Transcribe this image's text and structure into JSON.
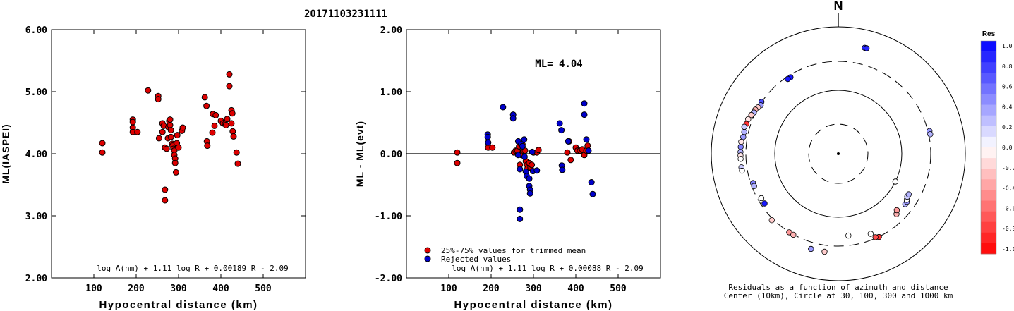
{
  "event_id": "20171103231111",
  "chart_data": [
    {
      "type": "scatter",
      "title": "",
      "xlabel": "Hypocentral distance (km)",
      "ylabel": "ML(IASPEI)",
      "xlim": [
        0,
        600
      ],
      "ylim": [
        2.0,
        6.0
      ],
      "xticks": [
        100,
        200,
        300,
        400,
        500
      ],
      "yticks": [
        2.0,
        3.0,
        4.0,
        5.0,
        6.0
      ],
      "ytick_labels": [
        "2.00",
        "3.00",
        "4.00",
        "5.00",
        "6.00"
      ],
      "formula": "log A(nm) + 1.11 log R + 0.00189 R - 2.09",
      "series": [
        {
          "color": "#dd0000",
          "points": [
            [
              120,
              4.17
            ],
            [
              120,
              4.02
            ],
            [
              192,
              4.55
            ],
            [
              192,
              4.51
            ],
            [
              192,
              4.42
            ],
            [
              192,
              4.35
            ],
            [
              203,
              4.35
            ],
            [
              228,
              5.02
            ],
            [
              252,
              4.93
            ],
            [
              252,
              4.88
            ],
            [
              254,
              4.25
            ],
            [
              262,
              4.35
            ],
            [
              262,
              4.49
            ],
            [
              265,
              4.45
            ],
            [
              268,
              3.42
            ],
            [
              268,
              3.25
            ],
            [
              268,
              4.1
            ],
            [
              272,
              4.08
            ],
            [
              275,
              4.25
            ],
            [
              276,
              4.43
            ],
            [
              278,
              4.53
            ],
            [
              280,
              4.55
            ],
            [
              280,
              4.46
            ],
            [
              282,
              4.38
            ],
            [
              282,
              4.27
            ],
            [
              285,
              4.16
            ],
            [
              286,
              4.13
            ],
            [
              288,
              4.08
            ],
            [
              290,
              4.05
            ],
            [
              290,
              3.98
            ],
            [
              292,
              3.92
            ],
            [
              292,
              3.85
            ],
            [
              294,
              3.7
            ],
            [
              296,
              4.17
            ],
            [
              297,
              4.3
            ],
            [
              300,
              4.1
            ],
            [
              308,
              4.37
            ],
            [
              310,
              4.42
            ],
            [
              362,
              4.91
            ],
            [
              366,
              4.77
            ],
            [
              367,
              4.2
            ],
            [
              368,
              4.13
            ],
            [
              380,
              4.34
            ],
            [
              381,
              4.64
            ],
            [
              385,
              4.45
            ],
            [
              388,
              4.62
            ],
            [
              400,
              4.53
            ],
            [
              405,
              4.49
            ],
            [
              410,
              4.48
            ],
            [
              412,
              4.46
            ],
            [
              415,
              4.56
            ],
            [
              420,
              5.28
            ],
            [
              420,
              5.09
            ],
            [
              425,
              4.49
            ],
            [
              425,
              4.7
            ],
            [
              427,
              4.65
            ],
            [
              428,
              4.36
            ],
            [
              430,
              4.28
            ],
            [
              437,
              4.02
            ],
            [
              440,
              3.84
            ]
          ]
        }
      ]
    },
    {
      "type": "scatter",
      "title": "",
      "xlabel": "Hypocentral distance (km)",
      "ylabel": "ML - ML(evt)",
      "xlim": [
        0,
        600
      ],
      "ylim": [
        -2.0,
        2.0
      ],
      "xticks": [
        100,
        200,
        300,
        400,
        500
      ],
      "yticks": [
        -2.0,
        -1.0,
        0.0,
        1.0,
        2.0
      ],
      "ytick_labels": [
        "-2.00",
        "-1.00",
        "0.00",
        "1.00",
        "2.00"
      ],
      "annotation": "ML= 4.04",
      "formula": "log A(nm) + 1.11 log R + 0.00088 R - 2.09",
      "legend": [
        "25%-75% values for trimmed mean",
        "Rejected values"
      ],
      "series": [
        {
          "name": "25%-75% values for trimmed mean",
          "color": "#dd0000",
          "points": [
            [
              120,
              0.02
            ],
            [
              120,
              -0.15
            ],
            [
              193,
              0.1
            ],
            [
              203,
              0.1
            ],
            [
              254,
              0.02
            ],
            [
              258,
              0.05
            ],
            [
              262,
              0.05
            ],
            [
              266,
              0.12
            ],
            [
              268,
              -0.18
            ],
            [
              272,
              -0.02
            ],
            [
              274,
              0.15
            ],
            [
              276,
              0.05
            ],
            [
              280,
              0.05
            ],
            [
              282,
              -0.12
            ],
            [
              285,
              -0.18
            ],
            [
              286,
              -0.24
            ],
            [
              290,
              -0.15
            ],
            [
              293,
              -0.22
            ],
            [
              296,
              -0.18
            ],
            [
              300,
              0.02
            ],
            [
              308,
              0.02
            ],
            [
              312,
              0.06
            ],
            [
              380,
              0.02
            ],
            [
              384,
              0.2
            ],
            [
              388,
              -0.1
            ],
            [
              400,
              0.1
            ],
            [
              404,
              0.05
            ],
            [
              410,
              0.05
            ],
            [
              415,
              0.07
            ],
            [
              420,
              -0.02
            ],
            [
              425,
              0.05
            ],
            [
              428,
              0.13
            ]
          ]
        },
        {
          "name": "Rejected values",
          "color": "#0000cc",
          "points": [
            [
              192,
              0.31
            ],
            [
              192,
              0.27
            ],
            [
              193,
              0.18
            ],
            [
              228,
              0.75
            ],
            [
              252,
              0.63
            ],
            [
              252,
              0.57
            ],
            [
              264,
              -0.02
            ],
            [
              264,
              0.2
            ],
            [
              268,
              -0.25
            ],
            [
              268,
              -0.9
            ],
            [
              268,
              -1.05
            ],
            [
              271,
              0.15
            ],
            [
              274,
              0.12
            ],
            [
              278,
              0.23
            ],
            [
              279,
              -0.05
            ],
            [
              282,
              -0.29
            ],
            [
              284,
              -0.36
            ],
            [
              290,
              -0.4
            ],
            [
              290,
              -0.52
            ],
            [
              292,
              -0.58
            ],
            [
              292,
              -0.64
            ],
            [
              297,
              0.03
            ],
            [
              299,
              -0.28
            ],
            [
              308,
              -0.27
            ],
            [
              362,
              0.49
            ],
            [
              366,
              0.38
            ],
            [
              367,
              -0.19
            ],
            [
              368,
              -0.26
            ],
            [
              382,
              0.2
            ],
            [
              420,
              0.81
            ],
            [
              420,
              0.63
            ],
            [
              425,
              0.23
            ],
            [
              430,
              0.05
            ],
            [
              437,
              -0.46
            ],
            [
              440,
              -0.65
            ]
          ]
        }
      ]
    }
  ],
  "polar": {
    "north_label": "N",
    "caption_line1": "Residuals as a function of azimuth and distance",
    "caption_line2": "Center (10km), Circle at 30, 100, 300 and 1000 km",
    "points": [
      {
        "az": 14,
        "r": 0.86,
        "res": 0.85
      },
      {
        "az": 15,
        "r": 0.86,
        "res": 0.85
      },
      {
        "az": -32,
        "r": 0.71,
        "res": 0.9
      },
      {
        "az": -34,
        "r": 0.71,
        "res": 0.9
      },
      {
        "az": -56,
        "r": 0.73,
        "res": 0.7
      },
      {
        "az": -58,
        "r": 0.72,
        "res": 0.4
      },
      {
        "az": -60,
        "r": 0.73,
        "res": -0.2
      },
      {
        "az": -62,
        "r": 0.74,
        "res": -0.3
      },
      {
        "az": -64,
        "r": 0.74,
        "res": 0.3
      },
      {
        "az": -66,
        "r": 0.75,
        "res": -0.2
      },
      {
        "az": -69,
        "r": 0.76,
        "res": -0.1
      },
      {
        "az": -72,
        "r": 0.76,
        "res": -0.8
      },
      {
        "az": -74,
        "r": 0.77,
        "res": 0.2
      },
      {
        "az": -77,
        "r": 0.76,
        "res": 0.3
      },
      {
        "az": -80,
        "r": 0.76,
        "res": 0.4
      },
      {
        "az": -83,
        "r": 0.77,
        "res": -0.1
      },
      {
        "az": -86,
        "r": 0.77,
        "res": 0.5
      },
      {
        "az": -89,
        "r": 0.77,
        "res": 0.3
      },
      {
        "az": -91,
        "r": 0.77,
        "res": -0.1
      },
      {
        "az": -93,
        "r": 0.77,
        "res": 0.0
      },
      {
        "az": -98,
        "r": 0.77,
        "res": 0.2
      },
      {
        "az": -100,
        "r": 0.77,
        "res": 0.0
      },
      {
        "az": -109,
        "r": 0.71,
        "res": 0.5
      },
      {
        "az": -111,
        "r": 0.71,
        "res": 0.3
      },
      {
        "az": -120,
        "r": 0.7,
        "res": 0.0
      },
      {
        "az": -124,
        "r": 0.7,
        "res": 0.9
      },
      {
        "az": -135,
        "r": 0.74,
        "res": -0.2
      },
      {
        "az": -148,
        "r": 0.73,
        "res": -0.4
      },
      {
        "az": -151,
        "r": 0.73,
        "res": -0.3
      },
      {
        "az": -164,
        "r": 0.78,
        "res": 0.4
      },
      {
        "az": -172,
        "r": 0.78,
        "res": -0.2
      },
      {
        "az": 173,
        "r": 0.65,
        "res": 0.0
      },
      {
        "az": 158,
        "r": 0.68,
        "res": 0.0
      },
      {
        "az": 154,
        "r": 0.73,
        "res": -0.8
      },
      {
        "az": 156,
        "r": 0.72,
        "res": -0.7
      },
      {
        "az": 136,
        "r": 0.66,
        "res": -0.3
      },
      {
        "az": 134,
        "r": 0.64,
        "res": -0.4
      },
      {
        "az": 127,
        "r": 0.66,
        "res": 0.3
      },
      {
        "az": 125,
        "r": 0.66,
        "res": 0.4
      },
      {
        "az": 124,
        "r": 0.65,
        "res": 0.0
      },
      {
        "az": 122,
        "r": 0.64,
        "res": 0.2
      },
      {
        "az": 120,
        "r": 0.64,
        "res": 0.3
      },
      {
        "az": 116,
        "r": 0.5,
        "res": 0.0
      },
      {
        "az": 76,
        "r": 0.74,
        "res": 0.4
      },
      {
        "az": 78,
        "r": 0.74,
        "res": 0.3
      }
    ]
  },
  "colorbar": {
    "title": "Res",
    "labels": [
      "1.0",
      "0.8",
      "0.6",
      "0.4",
      "0.2",
      "0.0",
      "-0.2",
      "-0.4",
      "-0.6",
      "-0.8",
      "-1.0"
    ],
    "max_color": "#0000ff",
    "zero_color": "#ffffff",
    "min_color": "#ff0000"
  }
}
